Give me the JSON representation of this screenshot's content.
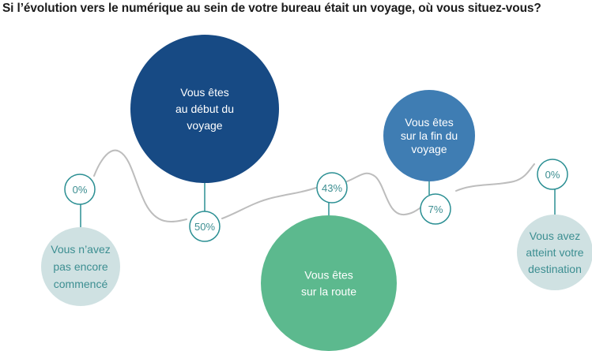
{
  "title": "Si l’évolution vers le numérique au sein de votre bureau était un voyage, où vous situez-vous?",
  "colors": {
    "line": "#bdbdbd",
    "ring": "#2b8f93",
    "text_teal": "#3c8e91",
    "dark_blue": "#174a84",
    "mid_blue": "#3f7db3",
    "green": "#5cb98e",
    "light_gray_teal": "#cfe1e2"
  },
  "chart_data": {
    "type": "bubble",
    "unit": "%",
    "stages": [
      {
        "label": "Vous n’avez pas encore commencé",
        "label_lines": [
          "Vous n’avez",
          "pas encore",
          "commencé"
        ],
        "value": 0,
        "value_label": "0%",
        "color": "light_gray_teal"
      },
      {
        "label": "Vous êtes au début du voyage",
        "label_lines": [
          "Vous êtes",
          "au début du",
          "voyage"
        ],
        "value": 50,
        "value_label": "50%",
        "color": "dark_blue"
      },
      {
        "label": "Vous êtes sur la route",
        "label_lines": [
          "Vous êtes",
          "sur la route"
        ],
        "value": 43,
        "value_label": "43%",
        "color": "green"
      },
      {
        "label": "Vous êtes sur la fin du voyage",
        "label_lines": [
          "Vous êtes",
          "sur la fin du",
          "voyage"
        ],
        "value": 7,
        "value_label": "7%",
        "color": "mid_blue"
      },
      {
        "label": "Vous avez atteint votre destination",
        "label_lines": [
          "Vous avez",
          "atteint votre",
          "destination"
        ],
        "value": 0,
        "value_label": "0%",
        "color": "light_gray_teal"
      }
    ]
  }
}
